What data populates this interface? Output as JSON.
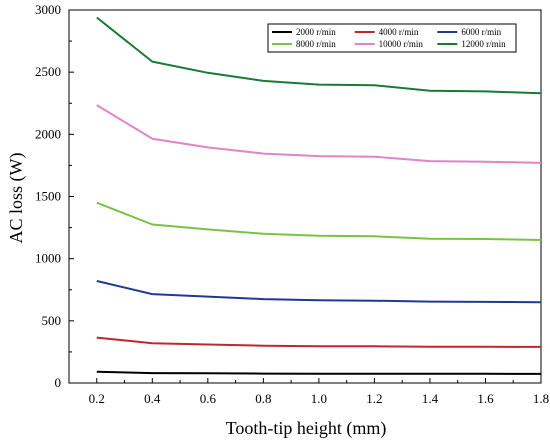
{
  "chart_data": {
    "type": "line",
    "title": "",
    "xlabel": "Tooth-tip height (mm)",
    "ylabel": "AC loss (W)",
    "x": [
      0.2,
      0.4,
      0.6,
      0.8,
      1.0,
      1.2,
      1.4,
      1.6,
      1.8
    ],
    "xlim": [
      0.1,
      1.8
    ],
    "ylim": [
      0,
      3000
    ],
    "xticks": [
      0.2,
      0.4,
      0.6,
      0.8,
      1.0,
      1.2,
      1.4,
      1.6,
      1.8
    ],
    "xtick_labels": [
      "0.2",
      "0.4",
      "0.6",
      "0.8",
      "1.0",
      "1.2",
      "1.4",
      "1.6",
      "1.8"
    ],
    "yticks": [
      0,
      500,
      1000,
      1500,
      2000,
      2500,
      3000
    ],
    "ytick_labels": [
      "0",
      "500",
      "1000",
      "1500",
      "2000",
      "2500",
      "3000"
    ],
    "grid": false,
    "legend_position": "top-right",
    "series": [
      {
        "name": "2000 r/min",
        "color": "#000000",
        "values": [
          90,
          80,
          78,
          76,
          75,
          75,
          74,
          74,
          73
        ]
      },
      {
        "name": "4000 r/min",
        "color": "#c0272d",
        "values": [
          365,
          320,
          310,
          300,
          295,
          295,
          292,
          291,
          290
        ]
      },
      {
        "name": "6000 r/min",
        "color": "#1f3a93",
        "values": [
          820,
          715,
          695,
          675,
          665,
          662,
          655,
          652,
          650
        ]
      },
      {
        "name": "8000 r/min",
        "color": "#7cc242",
        "values": [
          1450,
          1275,
          1235,
          1200,
          1185,
          1180,
          1160,
          1158,
          1150
        ]
      },
      {
        "name": "10000 r/min",
        "color": "#e183c8",
        "values": [
          2235,
          1965,
          1895,
          1845,
          1825,
          1820,
          1785,
          1780,
          1770
        ]
      },
      {
        "name": "12000 r/min",
        "color": "#1a7a34",
        "values": [
          2940,
          2585,
          2495,
          2430,
          2400,
          2395,
          2350,
          2345,
          2330
        ]
      }
    ]
  }
}
